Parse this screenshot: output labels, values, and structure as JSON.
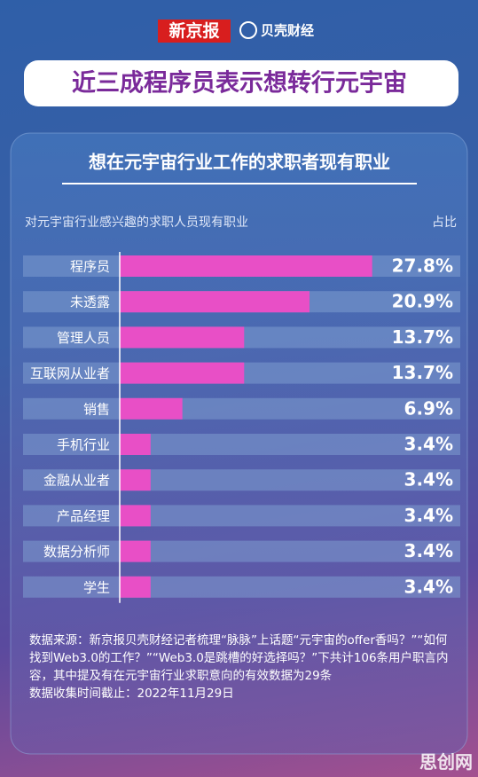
{
  "header": {
    "logo": "新京报",
    "brand": "贝壳财经"
  },
  "title": "近三成程序员表示想转行元宇宙",
  "chart_data": {
    "type": "bar",
    "orientation": "horizontal",
    "title": "想在元宇宙行业工作的求职者现有职业",
    "category_header": "对元宇宙行业感兴趣的求职人员现有职业",
    "value_header": "占比",
    "categories": [
      "程序员",
      "未透露",
      "管理人员",
      "互联网从业者",
      "销售",
      "手机行业",
      "金融从业者",
      "产品经理",
      "数据分析师",
      "学生"
    ],
    "values": [
      27.8,
      20.9,
      13.7,
      13.7,
      6.9,
      3.4,
      3.4,
      3.4,
      3.4,
      3.4
    ],
    "value_labels": [
      "27.8%",
      "20.9%",
      "13.7%",
      "13.7%",
      "6.9%",
      "3.4%",
      "3.4%",
      "3.4%",
      "3.4%",
      "3.4%"
    ],
    "color": "#e84fc6",
    "xlim": [
      0,
      37.5
    ]
  },
  "notes": [
    "数据来源：新京报贝壳财经记者梳理“脉脉”上话题“元宇宙的offer香吗？”“如何找到Web3.0的工作？”“Web3.0是跳槽的好选择吗？”下共计106条用户职言内容，其中提及有在元宇宙行业求职意向的有效数据为29条",
    "数据收集时间截止：2022年11月29日"
  ],
  "watermark": "思创网"
}
